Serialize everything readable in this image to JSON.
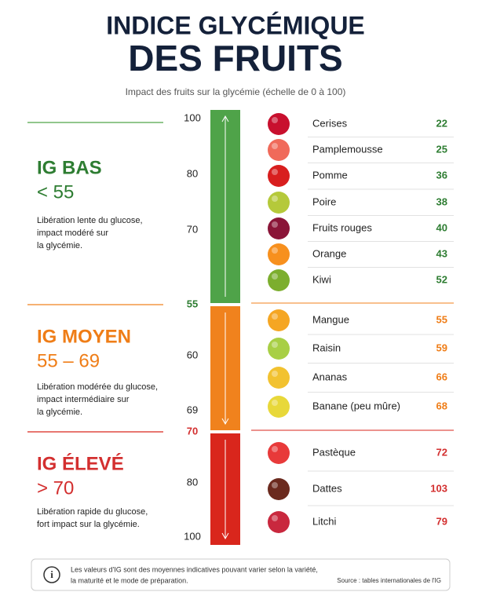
{
  "header": {
    "title_line1": "INDICE GLYCÉMIQUE",
    "title_line2": "DES FRUITS",
    "subtitle": "Impact des fruits sur la glycémie (échelle de 0 à 100)"
  },
  "sections": [
    {
      "label": "IG BAS",
      "range": "< 55",
      "description": [
        "Libération lente du glucose,",
        "impact modéré sur",
        "la glycémie."
      ],
      "scale_labels": [
        100,
        80,
        70
      ],
      "boundary": 55,
      "fruits": [
        {
          "name": "Cerises",
          "ig": 22
        },
        {
          "name": "Pamplemousse",
          "ig": 25
        },
        {
          "name": "Pomme",
          "ig": 36
        },
        {
          "name": "Poire",
          "ig": 38
        },
        {
          "name": "Fruits rouges",
          "ig": 40
        },
        {
          "name": "Orange",
          "ig": 43
        },
        {
          "name": "Kiwi",
          "ig": 52
        }
      ]
    },
    {
      "label": "IG MOYEN",
      "range": "55 – 69",
      "description": [
        "Libération modérée du glucose,",
        "impact intermédiaire sur",
        "la glycémie."
      ],
      "scale_labels": [
        60,
        69
      ],
      "boundary": 70,
      "fruits": [
        {
          "name": "Mangue",
          "ig": 55
        },
        {
          "name": "Raisin",
          "ig": 59
        },
        {
          "name": "Ananas",
          "ig": 66
        },
        {
          "name": "Banane (peu mûre)",
          "ig": 68
        }
      ]
    },
    {
      "label": "IG ÉLEVÉ",
      "range": "> 70",
      "description": [
        "Libération rapide du glucose,",
        "fort impact sur la glycémie."
      ],
      "scale_labels": [
        80,
        100
      ],
      "fruits": [
        {
          "name": "Pastèque",
          "ig": 72
        },
        {
          "name": "Dattes",
          "ig": 103
        },
        {
          "name": "Litchi",
          "ig": 79
        }
      ]
    }
  ],
  "footer": {
    "note": [
      "Les valeurs d'IG sont des moyennes indicatives pouvant varier selon la variété,",
      "la maturité et le mode de préparation."
    ],
    "source": "Source : tables internationales de l'IG"
  }
}
